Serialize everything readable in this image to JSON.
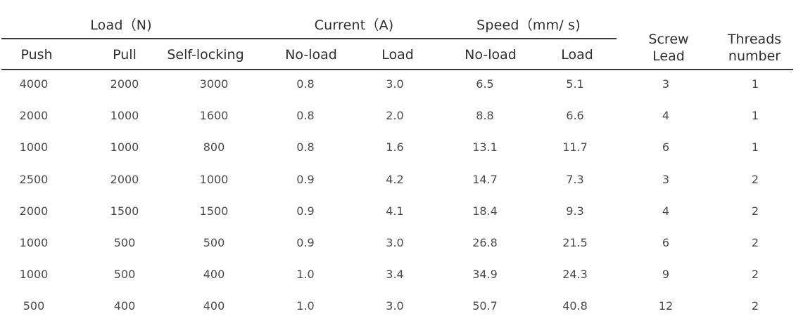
{
  "table": {
    "group_headers": {
      "load": "Load（N)",
      "current": "Current（A)",
      "speed": "Speed（mm/ s)"
    },
    "sub_headers": {
      "push": "Push",
      "pull": "Pull",
      "self_locking": "Self-locking",
      "current_noload": "No-load",
      "current_load": "Load",
      "speed_noload": "No-load",
      "speed_load": "Load"
    },
    "side_headers": {
      "screw_lead": [
        "Screw",
        "Lead"
      ],
      "threads_number": [
        "Threads",
        "number"
      ]
    },
    "rows": [
      [
        "4000",
        "2000",
        "3000",
        "0.8",
        "3.0",
        "6.5",
        "5.1",
        "3",
        "1"
      ],
      [
        "2000",
        "1000",
        "1600",
        "0.8",
        "2.0",
        "8.8",
        "6.6",
        "4",
        "1"
      ],
      [
        "1000",
        "1000",
        "800",
        "0.8",
        "1.6",
        "13.1",
        "11.7",
        "6",
        "1"
      ],
      [
        "2500",
        "2000",
        "1000",
        "0.9",
        "4.2",
        "14.7",
        "7.3",
        "3",
        "2"
      ],
      [
        "2000",
        "1500",
        "1500",
        "0.9",
        "4.1",
        "18.4",
        "9.3",
        "4",
        "2"
      ],
      [
        "1000",
        "500",
        "500",
        "0.9",
        "3.0",
        "26.8",
        "21.5",
        "6",
        "2"
      ],
      [
        "1000",
        "500",
        "400",
        "1.0",
        "3.4",
        "34.9",
        "24.3",
        "9",
        "2"
      ],
      [
        "500",
        "400",
        "400",
        "1.0",
        "3.0",
        "50.7",
        "40.8",
        "12",
        "2"
      ]
    ]
  }
}
